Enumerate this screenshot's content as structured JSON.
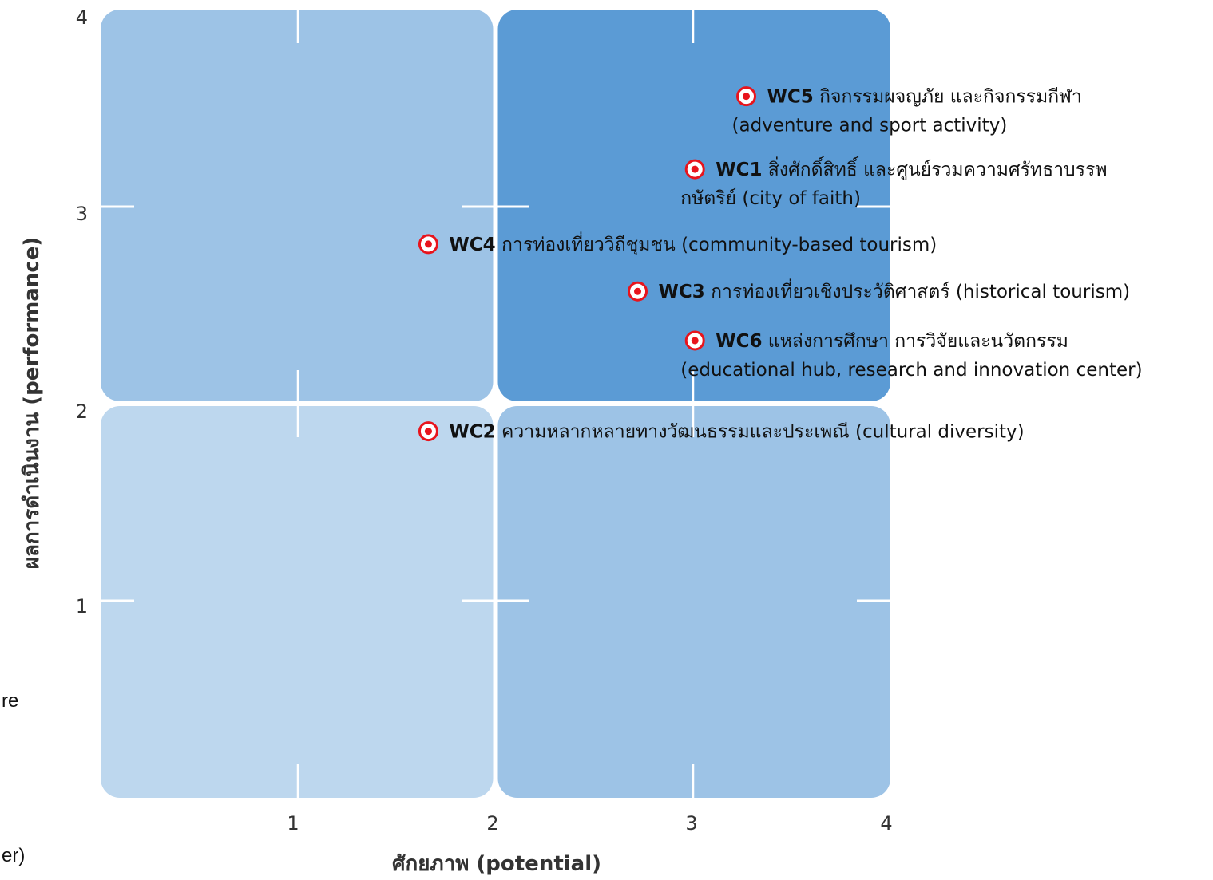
{
  "chart_data": {
    "type": "scatter",
    "xlabel": "ศักยภาพ (potential)",
    "ylabel": "ผลการดำเนินงาน (performance)",
    "xlim": [
      0,
      4
    ],
    "ylim": [
      0,
      4
    ],
    "x_ticks": [
      "1",
      "2",
      "3",
      "4"
    ],
    "y_ticks": [
      "1",
      "2",
      "3",
      "4"
    ],
    "grid": false,
    "quadrants": [
      {
        "name": "low-potential-high-performance",
        "x": [
          0,
          2
        ],
        "y": [
          2,
          4
        ],
        "color": "#9DC3E6"
      },
      {
        "name": "high-potential-high-performance",
        "x": [
          2,
          4
        ],
        "y": [
          2,
          4
        ],
        "color": "#5B9BD5"
      },
      {
        "name": "low-potential-low-performance",
        "x": [
          0,
          2
        ],
        "y": [
          0,
          2
        ],
        "color": "#BDD7EE"
      },
      {
        "name": "high-potential-low-performance",
        "x": [
          2,
          4
        ],
        "y": [
          0,
          2
        ],
        "color": "#9DC3E6"
      }
    ],
    "marker_color": "#E8141C",
    "points": [
      {
        "code": "WC5",
        "x": 3.27,
        "y": 3.56,
        "lines": [
          "กิจกรรมผจญภัย และกิจกรรมกีฬา",
          "(adventure and sport activity)"
        ]
      },
      {
        "code": "WC1",
        "x": 3.01,
        "y": 3.19,
        "lines": [
          "สิ่งศักดิ์สิทธิ์ และศูนย์รวมความศรัทธาบรรพ",
          "กษัตริย์ (city of faith)"
        ]
      },
      {
        "code": "WC4",
        "x": 1.66,
        "y": 2.81,
        "lines": [
          "การท่องเที่ยววิถีชุมชน (community-based tourism)"
        ]
      },
      {
        "code": "WC3",
        "x": 2.72,
        "y": 2.57,
        "lines": [
          "การท่องเที่ยวเชิงประวัติศาสตร์ (historical tourism)"
        ]
      },
      {
        "code": "WC6",
        "x": 3.01,
        "y": 2.32,
        "lines": [
          "แหล่งการศึกษา การวิจัยและนวัตกรรม",
          "(educational hub, research and innovation center)"
        ]
      },
      {
        "code": "WC2",
        "x": 1.66,
        "y": 1.86,
        "lines": [
          "ความหลากหลายทางวัฒนธรรมและประเพณี (cultural diversity)"
        ]
      }
    ]
  },
  "cutoff_text": {
    "left_fragment_1": "re",
    "left_fragment_2": "er)"
  }
}
